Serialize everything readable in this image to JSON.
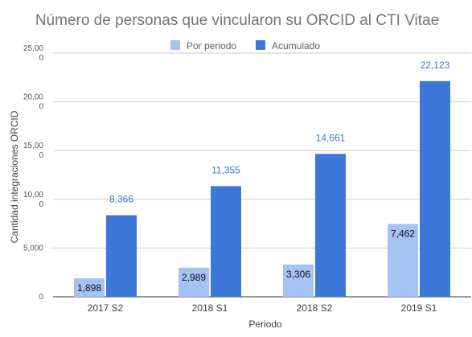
{
  "chart_data": {
    "type": "bar",
    "title": "Número de personas que vincularon su ORCID al CTI Vitae",
    "xlabel": "Periodo",
    "ylabel": "Cantidad integraciones ORCID",
    "categories": [
      "2017 S2",
      "2018 S1",
      "2018 S2",
      "2019 S1"
    ],
    "series": [
      {
        "name": "Por periodo",
        "color": "#a4c2f4",
        "values": [
          1898,
          2989,
          3306,
          7462
        ],
        "labels": [
          "1,898",
          "2,989",
          "3,306",
          "7,462"
        ]
      },
      {
        "name": "Acumulado",
        "color": "#3c78d8",
        "values": [
          8366,
          11355,
          14661,
          22123
        ],
        "labels": [
          "8,366",
          "11,355",
          "14,661",
          "22,123"
        ]
      }
    ],
    "ylim": [
      0,
      25000
    ],
    "yticks": [
      {
        "value": 0,
        "line1": "0",
        "line2": ""
      },
      {
        "value": 5000,
        "line1": "5,000",
        "line2": ""
      },
      {
        "value": 10000,
        "line1": "10,00",
        "line2": "0"
      },
      {
        "value": 15000,
        "line1": "15,00",
        "line2": "0"
      },
      {
        "value": 20000,
        "line1": "20,00",
        "line2": "0"
      },
      {
        "value": 25000,
        "line1": "25,00",
        "line2": "0"
      }
    ],
    "grid": true,
    "legend_position": "top"
  }
}
